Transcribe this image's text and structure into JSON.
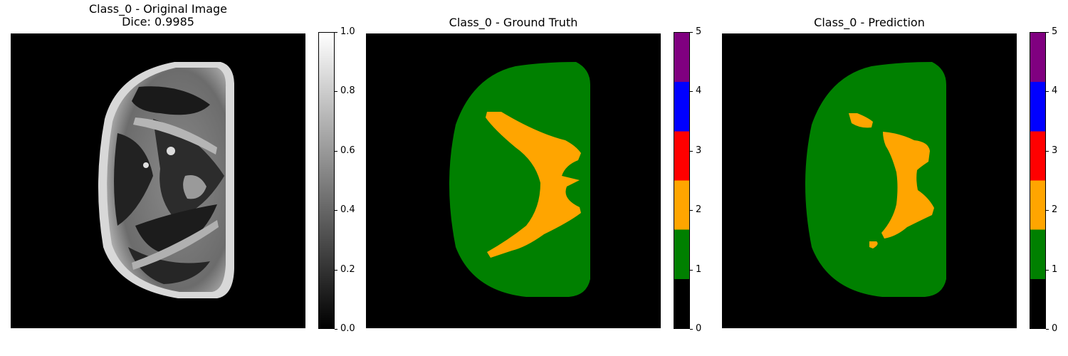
{
  "panels": [
    {
      "title": "Class_0 - Original Image",
      "subtitle": "Dice: 0.9985"
    },
    {
      "title": "Class_0 - Ground Truth"
    },
    {
      "title": "Class_0 - Prediction"
    }
  ],
  "colorbar_gray": {
    "ticks": [
      "0.0",
      "0.2",
      "0.4",
      "0.6",
      "0.8",
      "1.0"
    ],
    "range": [
      0,
      1
    ],
    "colors": [
      "#000000",
      "#ffffff"
    ]
  },
  "colorbar_classes": {
    "ticks": [
      "0",
      "1",
      "2",
      "3",
      "4",
      "5"
    ],
    "range": [
      0,
      5
    ],
    "colors": [
      "#000000",
      "#008000",
      "#ffa500",
      "#ff0000",
      "#0000ff",
      "#800080"
    ]
  }
}
